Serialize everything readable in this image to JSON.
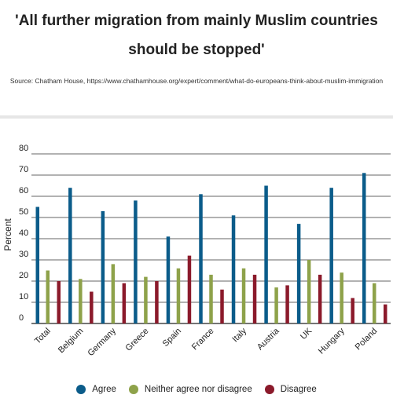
{
  "title": "'All further migration from mainly Muslim countries should be stopped'",
  "source": "Source: Chatham House, https://www.chathamhouse.org/expert/comment/what-do-europeans-think-about-muslim-immigration",
  "chart_data": {
    "type": "bar",
    "ylabel": "Percent",
    "xlabel": "",
    "ylim": [
      0,
      80
    ],
    "yticks": [
      0,
      10,
      20,
      30,
      40,
      50,
      60,
      70,
      80
    ],
    "grid": true,
    "legend_position": "bottom",
    "categories": [
      "Total",
      "Belgium",
      "Germany",
      "Greece",
      "Spain",
      "France",
      "Italy",
      "Austria",
      "UK",
      "Hungary",
      "Poland"
    ],
    "series": [
      {
        "name": "Agree",
        "color": "#0b5c8a",
        "values": [
          55,
          64,
          53,
          58,
          41,
          61,
          51,
          65,
          47,
          64,
          71
        ]
      },
      {
        "name": "Neither agree nor disagree",
        "color": "#8ea24a",
        "values": [
          25,
          21,
          28,
          22,
          26,
          23,
          26,
          17,
          30,
          24,
          19
        ]
      },
      {
        "name": "Disagree",
        "color": "#8b1a2b",
        "values": [
          20,
          15,
          19,
          20,
          32,
          16,
          23,
          18,
          23,
          12,
          9
        ]
      }
    ]
  }
}
